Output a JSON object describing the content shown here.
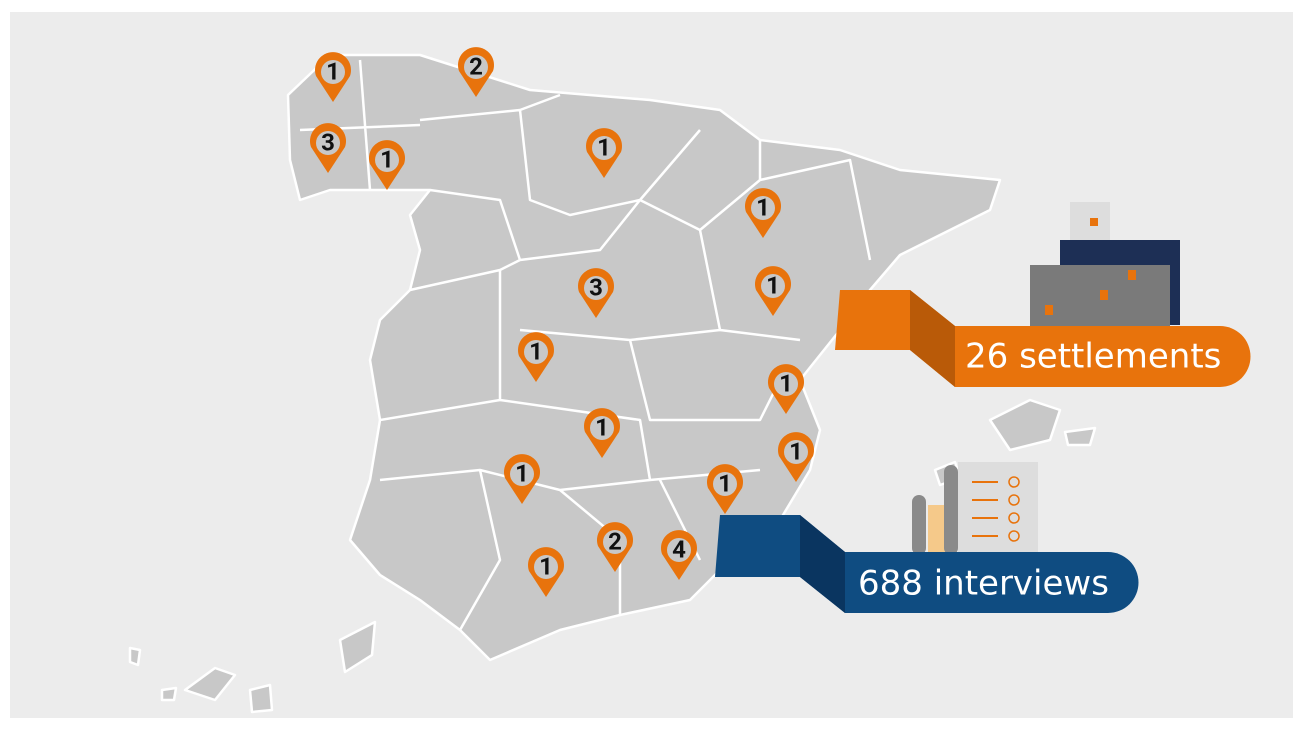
{
  "pins": [
    1,
    2,
    3,
    1,
    1,
    1,
    3,
    1,
    1,
    1,
    1,
    1,
    1,
    1,
    2,
    4,
    1
  ],
  "callouts": {
    "settlements": "26 settlements",
    "interviews": "688 interviews"
  }
}
